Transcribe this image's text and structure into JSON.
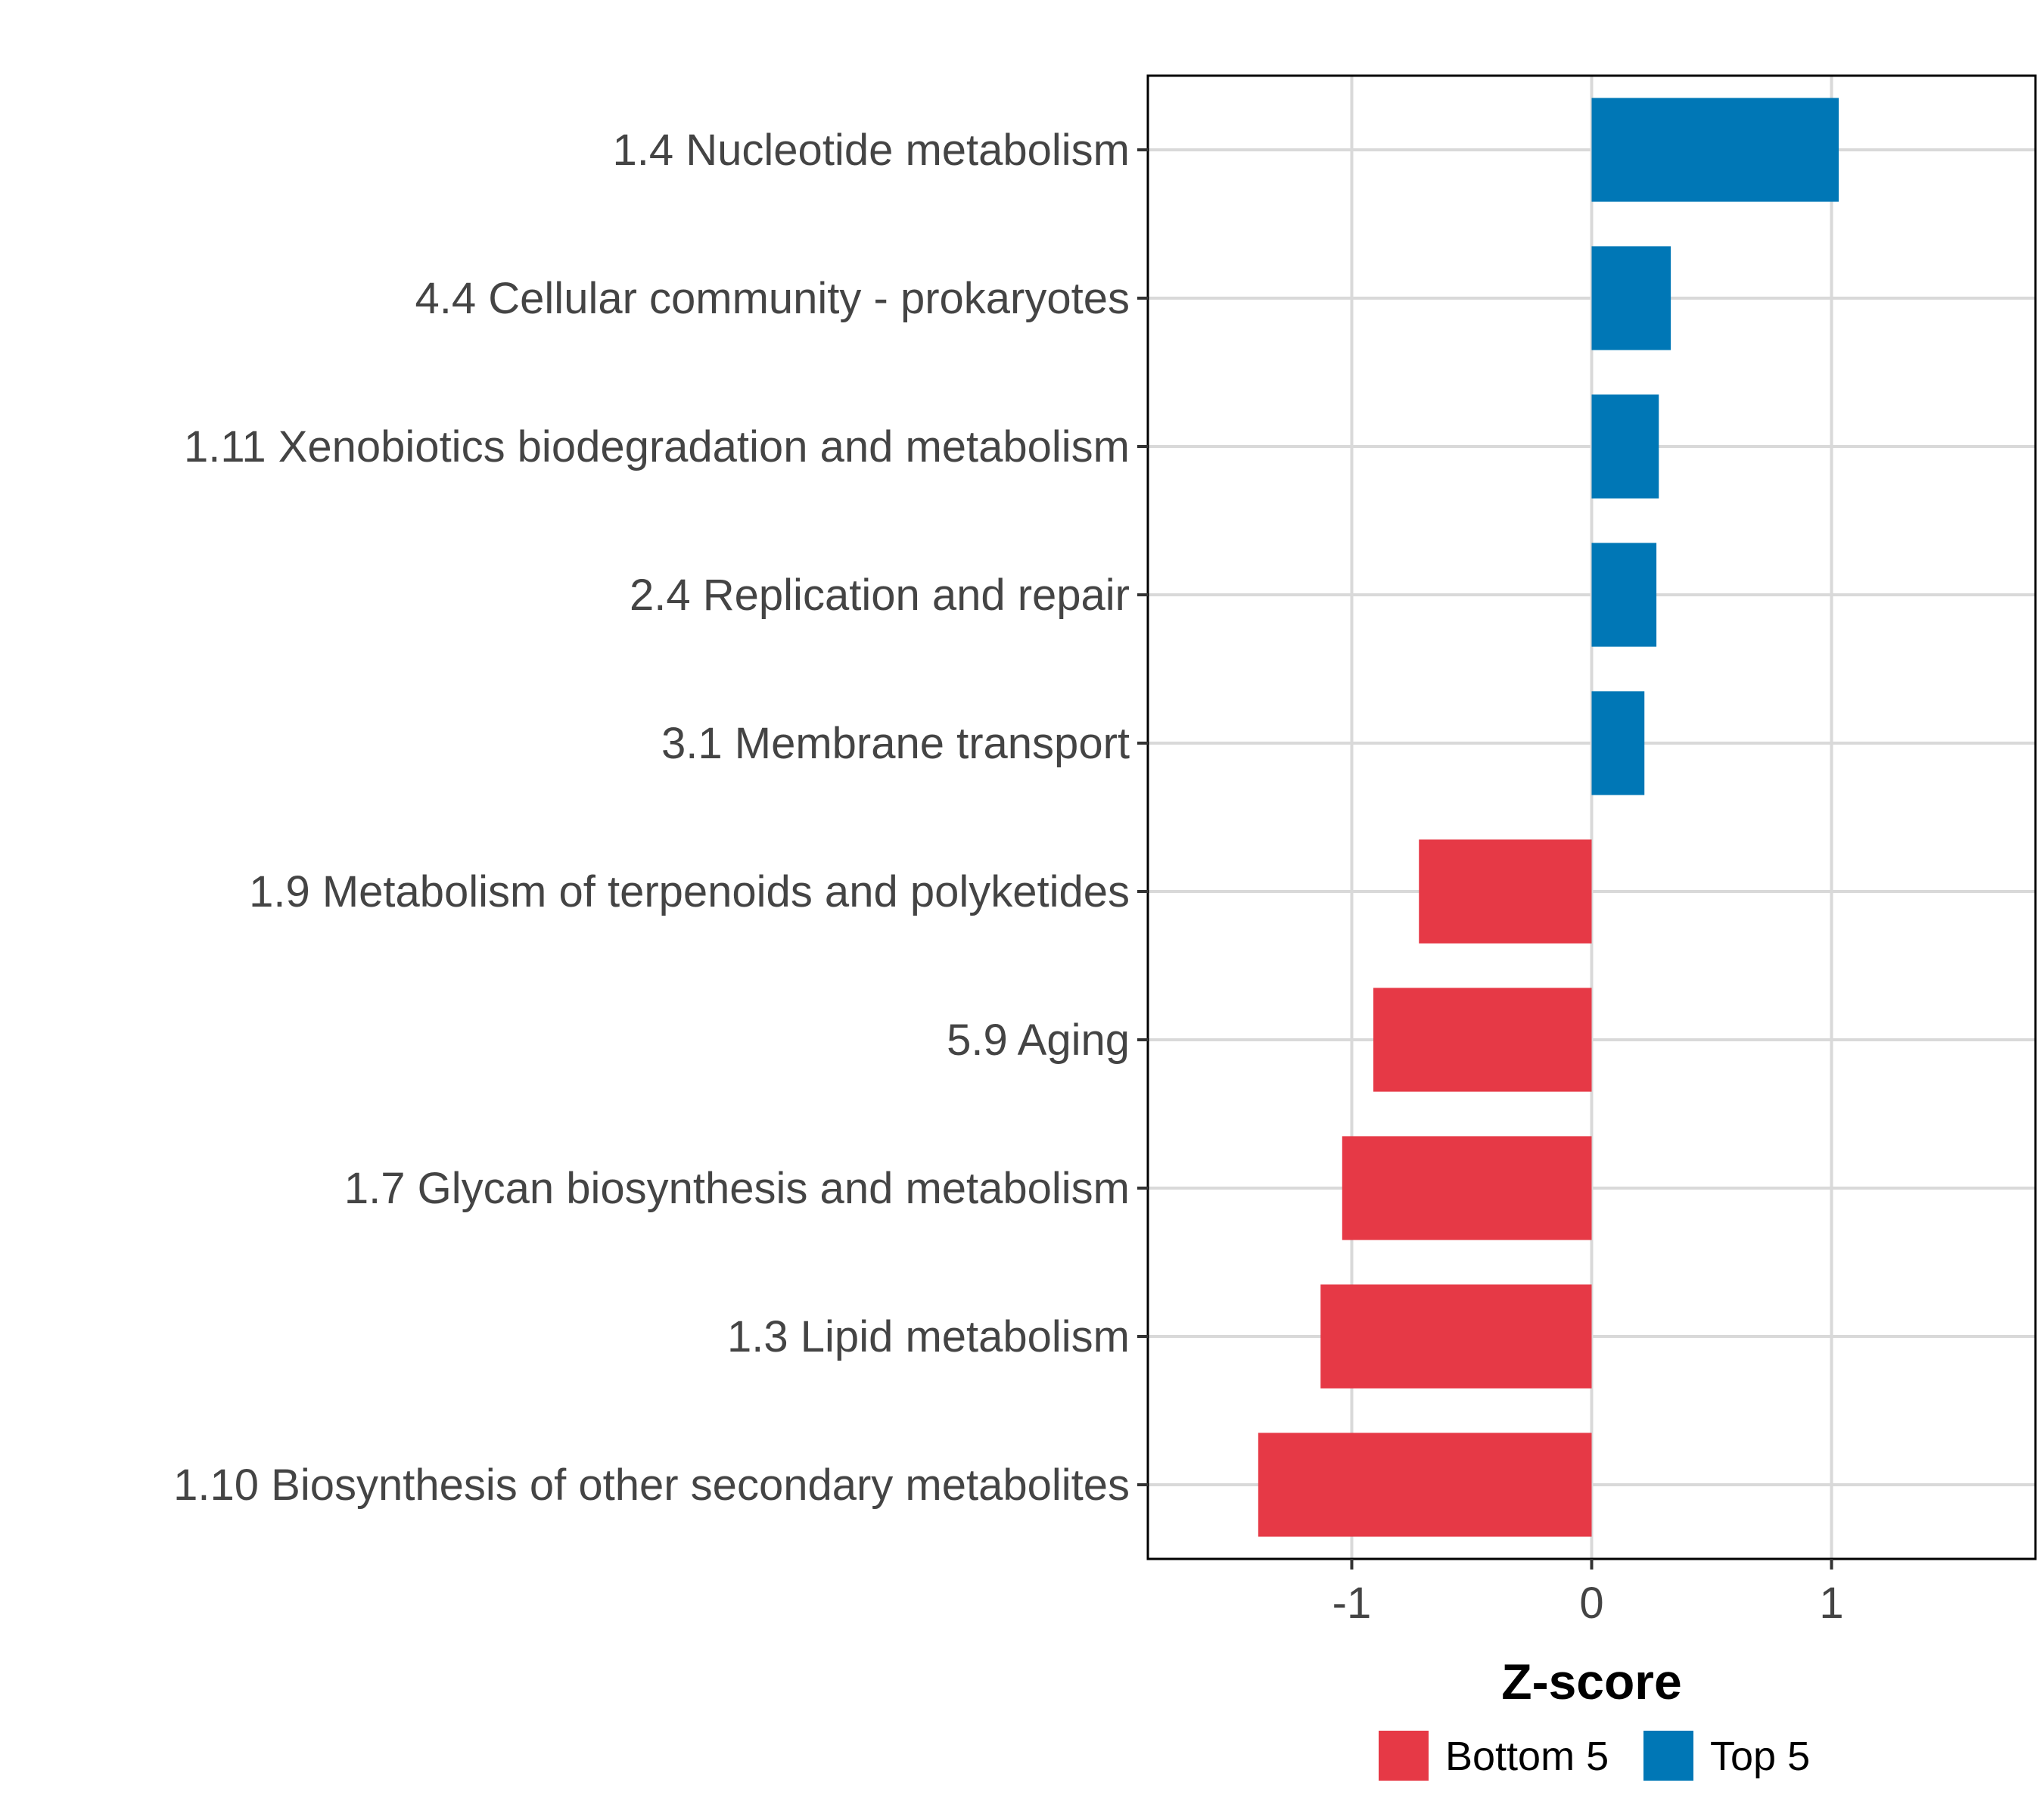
{
  "chart_data": {
    "type": "bar",
    "orientation": "horizontal",
    "title": "",
    "xlabel": "Z-score",
    "ylabel": "",
    "xlim": [
      -1.85,
      1.85
    ],
    "xticks": [
      -1,
      0,
      1
    ],
    "xtick_labels": [
      "-1",
      "0",
      "1"
    ],
    "grid": true,
    "legend_position": "bottom",
    "categories": [
      "1.4 Nucleotide metabolism",
      "4.4 Cellular community - prokaryotes",
      "1.11 Xenobiotics biodegradation and metabolism",
      "2.4 Replication and repair",
      "3.1 Membrane transport",
      "1.9 Metabolism of terpenoids and polyketides",
      "5.9 Aging",
      "1.7 Glycan biosynthesis and metabolism",
      "1.3 Lipid metabolism",
      "1.10 Biosynthesis of other secondary metabolites"
    ],
    "values": [
      1.03,
      0.33,
      0.28,
      0.27,
      0.22,
      -0.72,
      -0.91,
      -1.04,
      -1.13,
      -1.39
    ],
    "groups": [
      "Top 5",
      "Top 5",
      "Top 5",
      "Top 5",
      "Top 5",
      "Bottom 5",
      "Bottom 5",
      "Bottom 5",
      "Bottom 5",
      "Bottom 5"
    ],
    "legend": [
      {
        "label": "Bottom 5",
        "color": "#e63946"
      },
      {
        "label": "Top 5",
        "color": "#0077b6"
      }
    ]
  }
}
